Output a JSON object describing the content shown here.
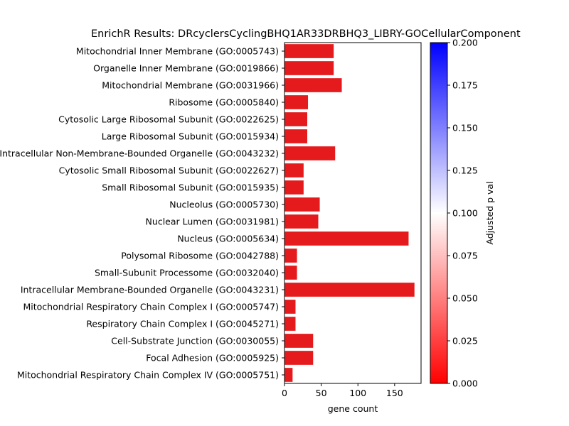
{
  "chart_data": {
    "type": "bar",
    "orientation": "horizontal",
    "title": "EnrichR Results: DRcyclersCyclingBHQ1AR33DRBHQ3_LIBRY-GOCellularComponent",
    "xlabel": "gene count",
    "ylabel": "",
    "xlim": [
      0,
      186
    ],
    "xticks": [
      0,
      50,
      100,
      150
    ],
    "bar_color": "#e41a1c",
    "categories": [
      "Mitochondrial Inner Membrane (GO:0005743)",
      "Organelle Inner Membrane (GO:0019866)",
      "Mitochondrial Membrane (GO:0031966)",
      "Ribosome (GO:0005840)",
      "Cytosolic Large Ribosomal Subunit (GO:0022625)",
      "Large Ribosomal Subunit (GO:0015934)",
      "Intracellular Non-Membrane-Bounded Organelle (GO:0043232)",
      "Cytosolic Small Ribosomal Subunit (GO:0022627)",
      "Small Ribosomal Subunit (GO:0015935)",
      "Nucleolus (GO:0005730)",
      "Nuclear Lumen (GO:0031981)",
      "Nucleus (GO:0005634)",
      "Polysomal Ribosome (GO:0042788)",
      "Small-Subunit Processome (GO:0032040)",
      "Intracellular Membrane-Bounded Organelle (GO:0043231)",
      "Mitochondrial Respiratory Chain Complex I (GO:0005747)",
      "Respiratory Chain Complex I (GO:0045271)",
      "Cell-Substrate Junction (GO:0030055)",
      "Focal Adhesion (GO:0005925)",
      "Mitochondrial Respiratory Chain Complex IV (GO:0005751)"
    ],
    "values": [
      67,
      67,
      78,
      32,
      31,
      31,
      69,
      26,
      26,
      48,
      46,
      169,
      17,
      17,
      177,
      15,
      15,
      39,
      39,
      11
    ],
    "colorbar": {
      "label": "Adjusted p val",
      "range": [
        0,
        0.2
      ],
      "ticks": [
        "0.000",
        "0.025",
        "0.050",
        "0.075",
        "0.100",
        "0.125",
        "0.150",
        "0.175",
        "0.200"
      ],
      "colors": [
        "#ff0000",
        "#ffffff",
        "#0000ff"
      ]
    }
  }
}
